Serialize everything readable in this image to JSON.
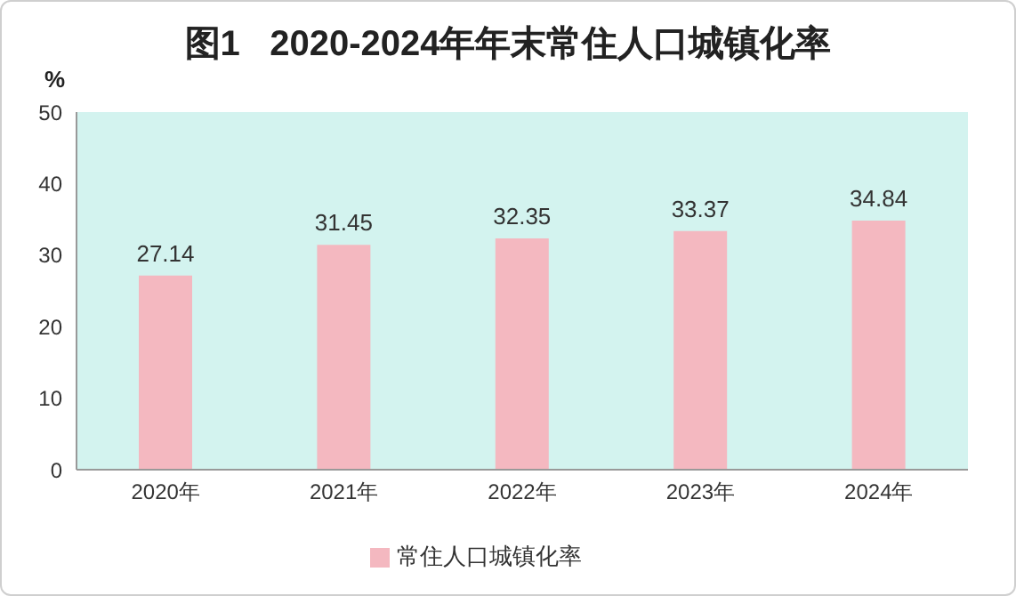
{
  "chart_data": {
    "type": "bar",
    "title": "图1   2020-2024年年末常住人口城镇化率",
    "ylabel": "%",
    "categories": [
      "2020年",
      "2021年",
      "2022年",
      "2023年",
      "2024年"
    ],
    "series": [
      {
        "name": "常住人口城镇化率",
        "color": "#f4b8c0",
        "values": [
          27.14,
          31.45,
          32.35,
          33.37,
          34.84
        ]
      }
    ],
    "ylim": [
      0,
      50
    ],
    "yticks": [
      0,
      10,
      20,
      30,
      40,
      50
    ],
    "data_labels": true,
    "grid": false,
    "legend": "bottom"
  }
}
